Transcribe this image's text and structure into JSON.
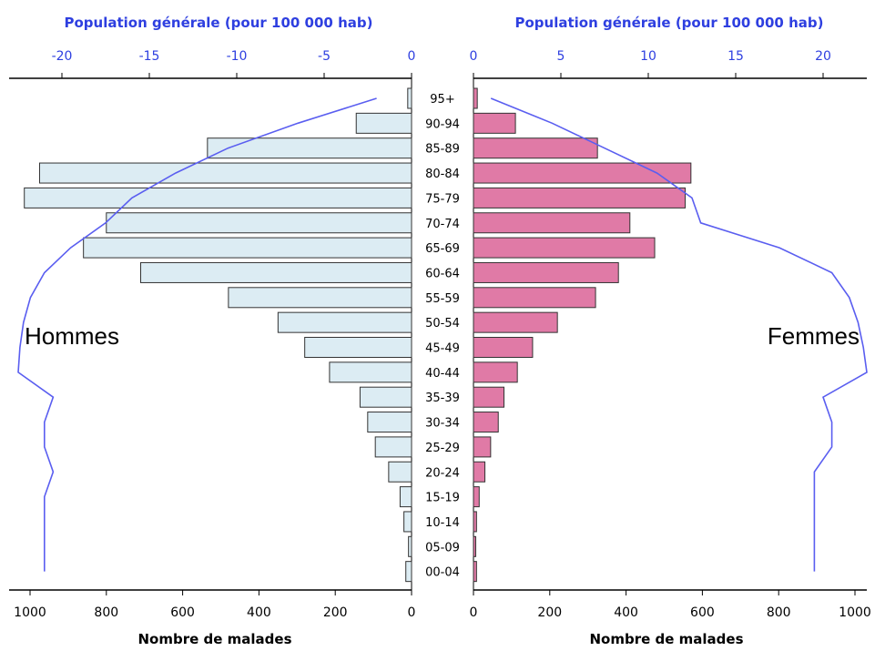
{
  "chart_data": {
    "type": "bar",
    "orientation": "horizontal-population-pyramid",
    "colors": {
      "men_bar": "#dcecf3",
      "men_bar_stroke": "#333333",
      "women_bar": "#e07aa6",
      "women_bar_stroke": "#333333",
      "line": "#5a5ef0",
      "axis_top": "#2e3fe0"
    },
    "top_axis": {
      "title_left": "Population générale (pour 100 000 hab)",
      "title_right": "Population générale (pour 100 000 hab)",
      "ticks_left": [
        -20,
        -15,
        -10,
        -5,
        0
      ],
      "ticks_left_labels": [
        "-20",
        "-15",
        "-10",
        "-5",
        "0"
      ],
      "ticks_right": [
        0,
        5,
        10,
        15,
        20
      ],
      "ticks_right_labels": [
        "0",
        "5",
        "10",
        "15",
        "20"
      ],
      "range_left": [
        -22.5,
        0
      ],
      "range_right": [
        0,
        22.5
      ]
    },
    "bottom_axis": {
      "title_left": "Nombre de malades",
      "title_right": "Nombre de malades",
      "ticks_left": [
        1000,
        800,
        600,
        400,
        200,
        0
      ],
      "ticks_left_labels": [
        "1000",
        "800",
        "600",
        "400",
        "200",
        "0"
      ],
      "ticks_right": [
        0,
        200,
        400,
        600,
        800,
        1000
      ],
      "ticks_right_labels": [
        "0",
        "200",
        "400",
        "600",
        "800",
        "1000"
      ],
      "range": [
        0,
        1020
      ]
    },
    "side_labels": {
      "left": "Hommes",
      "right": "Femmes"
    },
    "categories": [
      "95+",
      "90-94",
      "85-89",
      "80-84",
      "75-79",
      "70-74",
      "65-69",
      "60-64",
      "55-59",
      "50-54",
      "45-49",
      "40-44",
      "35-39",
      "30-34",
      "25-29",
      "20-24",
      "15-19",
      "10-14",
      "05-09",
      "00-04"
    ],
    "series": [
      {
        "name": "Hommes",
        "values": [
          10,
          145,
          535,
          975,
          1015,
          800,
          860,
          710,
          480,
          350,
          280,
          215,
          135,
          115,
          95,
          60,
          30,
          20,
          8,
          15
        ]
      },
      {
        "name": "Femmes",
        "values": [
          10,
          110,
          325,
          570,
          555,
          410,
          475,
          380,
          320,
          220,
          155,
          115,
          80,
          65,
          45,
          30,
          15,
          8,
          6,
          8
        ]
      }
    ],
    "population_line": {
      "men": [
        2.0,
        6.5,
        10.5,
        13.5,
        16.0,
        17.5,
        19.5,
        21.0,
        21.8,
        22.2,
        22.4,
        22.5,
        20.5,
        21.0,
        21.0,
        20.5,
        21.0,
        21.0,
        21.0,
        21.0
      ],
      "women": [
        1.0,
        4.5,
        7.5,
        10.5,
        12.5,
        13.0,
        17.5,
        20.5,
        21.5,
        22.0,
        22.3,
        22.5,
        20.0,
        20.5,
        20.5,
        19.5,
        19.5,
        19.5,
        19.5,
        19.5
      ]
    }
  }
}
